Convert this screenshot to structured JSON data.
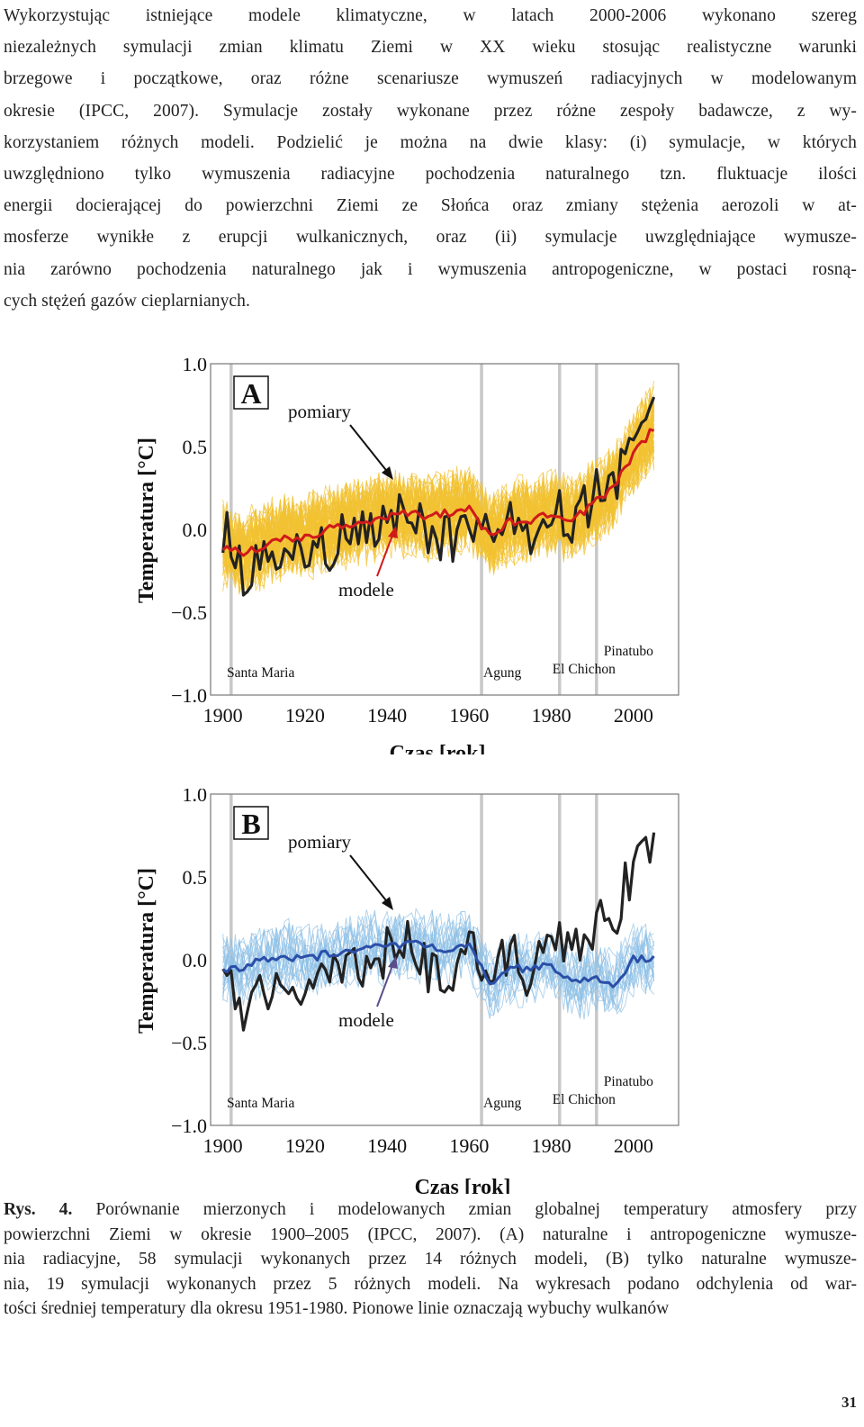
{
  "paragraph_lines": [
    "Wykorzystując istniejące modele klimatyczne, w latach 2000-2006 wykonano szereg",
    "niezależnych symulacji zmian klimatu Ziemi w XX wieku stosując realistyczne warunki",
    "brzegowe i początkowe, oraz różne scenariusze wymuszeń radiacyjnych w modelowanym",
    "okresie (IPCC, 2007). Symulacje zostały wykonane przez różne zespoły badawcze, z wy-",
    "korzystaniem różnych modeli. Podzielić je można na dwie klasy: (i) symulacje, w których",
    "uwzględniono tylko wymuszenia radiacyjne pochodzenia naturalnego tzn. fluktuacje ilości",
    "energii docierającej do powierzchni Ziemi ze Słońca oraz zmiany stężenia aerozoli w at-",
    "mosferze wynikłe z erupcji wulkanicznych, oraz (ii) symulacje uwzględniające wymusze-",
    "nia zarówno pochodzenia naturalnego jak i wymuszenia antropogeniczne, w postaci rosną-",
    "cych stężeń gazów cieplarnianych."
  ],
  "colors": {
    "ensemble_A": "#f1c232",
    "mean_A": "#d01a1a",
    "ensemble_B": "#8fc0e6",
    "mean_B": "#2b4fa8",
    "observations": "#222222",
    "volcano_line": "#c8c8c8",
    "arrow_obs": "#111111",
    "arrow_model_A": "#d01a1a",
    "arrow_model_B": "#5a4d8a"
  },
  "chart_data": [
    {
      "type": "line",
      "panel": "A",
      "ylabel": "Temperatura [°C]",
      "xlabel": "Czas [rok]",
      "xlim": [
        1897,
        2011
      ],
      "ylim": [
        -1.0,
        1.0
      ],
      "xticks": [
        1900,
        1920,
        1940,
        1960,
        1980,
        2000
      ],
      "yticks": [
        "1.0",
        "0.5",
        "0.0",
        "−0.5",
        "−1.0"
      ],
      "annotations": {
        "obs": "pomiary",
        "model": "modele"
      },
      "volcanoes": [
        {
          "name": "Santa Maria",
          "year": 1902
        },
        {
          "name": "Agung",
          "year": 1963
        },
        {
          "name": "El Chichon",
          "year": 1982
        },
        {
          "name": "Pinatubo",
          "year": 1991
        }
      ],
      "ensemble_members": 58,
      "x": [
        1900,
        1905,
        1910,
        1915,
        1920,
        1925,
        1930,
        1935,
        1940,
        1945,
        1950,
        1955,
        1960,
        1965,
        1970,
        1975,
        1980,
        1985,
        1990,
        1995,
        2000,
        2005
      ],
      "series": [
        {
          "name": "pomiary",
          "values": [
            0.0,
            -0.28,
            -0.22,
            -0.15,
            -0.2,
            -0.1,
            -0.05,
            -0.02,
            0.05,
            0.18,
            -0.1,
            -0.05,
            0.02,
            -0.02,
            0.03,
            -0.08,
            0.1,
            0.05,
            0.2,
            0.25,
            0.55,
            0.75
          ]
        },
        {
          "name": "modele",
          "values": [
            -0.1,
            -0.15,
            -0.1,
            -0.05,
            -0.05,
            0.0,
            0.03,
            0.05,
            0.08,
            0.1,
            0.07,
            0.1,
            0.12,
            -0.05,
            0.05,
            0.05,
            0.1,
            0.05,
            0.15,
            0.25,
            0.45,
            0.62
          ]
        }
      ]
    },
    {
      "type": "line",
      "panel": "B",
      "ylabel": "Temperatura [°C]",
      "xlabel": "Czas [rok]",
      "xlim": [
        1897,
        2011
      ],
      "ylim": [
        -1.0,
        1.0
      ],
      "xticks": [
        1900,
        1920,
        1940,
        1960,
        1980,
        2000
      ],
      "yticks": [
        "1.0",
        "0.5",
        "0.0",
        "−0.5",
        "−1.0"
      ],
      "annotations": {
        "obs": "pomiary",
        "model": "modele"
      },
      "volcanoes": [
        {
          "name": "Santa Maria",
          "year": 1902
        },
        {
          "name": "Agung",
          "year": 1963
        },
        {
          "name": "El Chichon",
          "year": 1982
        },
        {
          "name": "Pinatubo",
          "year": 1991
        }
      ],
      "ensemble_members": 19,
      "x": [
        1900,
        1905,
        1910,
        1915,
        1920,
        1925,
        1930,
        1935,
        1940,
        1945,
        1950,
        1955,
        1960,
        1965,
        1970,
        1975,
        1980,
        1985,
        1990,
        1995,
        2000,
        2005
      ],
      "series": [
        {
          "name": "pomiary",
          "values": [
            0.0,
            -0.28,
            -0.22,
            -0.15,
            -0.2,
            -0.1,
            -0.05,
            -0.02,
            0.05,
            0.18,
            -0.1,
            -0.05,
            0.02,
            -0.02,
            0.03,
            -0.08,
            0.1,
            0.05,
            0.2,
            0.25,
            0.55,
            0.75
          ]
        },
        {
          "name": "modele",
          "values": [
            -0.05,
            -0.05,
            0.0,
            0.02,
            0.0,
            0.03,
            0.05,
            0.07,
            0.08,
            0.1,
            0.08,
            0.06,
            0.1,
            -0.15,
            -0.05,
            -0.05,
            -0.03,
            -0.15,
            -0.1,
            -0.15,
            0.0,
            0.0
          ]
        }
      ]
    }
  ],
  "caption": {
    "lead": "Rys. 4.",
    "lines": [
      "Porównanie mierzonych i modelowanych zmian globalnej temperatury atmosfery przy",
      "powierzchni Ziemi w okresie 1900–2005 (IPCC, 2007). (A) naturalne i antropogeniczne wymusze-",
      "nia radiacyjne, 58 symulacji wykonanych przez 14 różnych modeli, (B) tylko naturalne wymusze-",
      "nia, 19 symulacji wykonanych przez 5 różnych modeli. Na wykresach podano odchylenia od war-",
      "tości średniej temperatury dla okresu 1951-1980. Pionowe linie oznaczają wybuchy wulkanów"
    ]
  },
  "page_number": "31"
}
